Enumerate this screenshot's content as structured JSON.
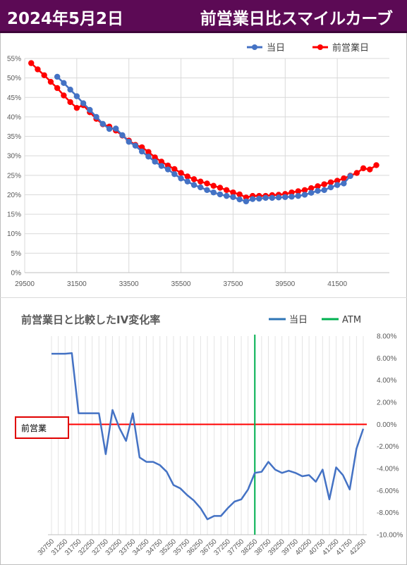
{
  "header": {
    "date": "2024年5月2日",
    "title": "前営業日比スマイルカーブ",
    "bg_color": "#5c0a55"
  },
  "chart_data": [
    {
      "type": "scatter",
      "title": "",
      "legend": {
        "placement": "top-right",
        "entries": [
          "当日",
          "前営業日"
        ]
      },
      "xlim": [
        29500,
        43500
      ],
      "ylim": [
        0,
        55
      ],
      "y_unit": "%",
      "x_ticks": [
        "29500",
        "31500",
        "33500",
        "35500",
        "37500",
        "39500",
        "41500"
      ],
      "y_ticks": [
        "0%",
        "5%",
        "10%",
        "15%",
        "20%",
        "25%",
        "30%",
        "35%",
        "40%",
        "45%",
        "50%",
        "55%"
      ],
      "grid": true,
      "series": [
        {
          "name": "当日",
          "color": "#4472c4",
          "x": [
            30750,
            31000,
            31250,
            31500,
            31750,
            32000,
            32250,
            32500,
            32750,
            33000,
            33250,
            33500,
            33750,
            34000,
            34250,
            34500,
            34750,
            35000,
            35250,
            35500,
            35750,
            36000,
            36250,
            36500,
            36750,
            37000,
            37250,
            37500,
            37750,
            38000,
            38250,
            38500,
            38750,
            39000,
            39250,
            39500,
            39750,
            40000,
            40250,
            40500,
            40750,
            41000,
            41250,
            41500,
            41750,
            42000
          ],
          "y": [
            50.3,
            48.7,
            47.0,
            45.3,
            43.5,
            41.8,
            40.0,
            38.2,
            36.9,
            37.0,
            35.3,
            33.6,
            32.6,
            31.1,
            29.8,
            28.5,
            27.4,
            26.5,
            25.3,
            24.2,
            23.4,
            22.5,
            21.9,
            21.2,
            20.6,
            20.1,
            19.7,
            19.4,
            18.8,
            18.3,
            18.9,
            19.0,
            19.2,
            19.2,
            19.3,
            19.4,
            19.5,
            19.7,
            20.0,
            20.5,
            21.0,
            21.2,
            21.9,
            22.5,
            22.9,
            24.8
          ]
        },
        {
          "name": "前営業日",
          "color": "#ff0000",
          "x": [
            29750,
            30000,
            30250,
            30500,
            30750,
            31000,
            31250,
            31500,
            31750,
            32000,
            32250,
            32500,
            32750,
            33000,
            33250,
            33500,
            33750,
            34000,
            34250,
            34500,
            34750,
            35000,
            35250,
            35500,
            35750,
            36000,
            36250,
            36500,
            36750,
            37000,
            37250,
            37500,
            37750,
            38000,
            38250,
            38500,
            38750,
            39000,
            39250,
            39500,
            39750,
            40000,
            40250,
            40500,
            40750,
            41000,
            41250,
            41500,
            41750,
            42000,
            42250,
            42500,
            42750,
            43000
          ],
          "y": [
            53.8,
            52.2,
            50.7,
            49.0,
            47.4,
            45.5,
            43.8,
            42.3,
            43.0,
            41.2,
            39.5,
            38.1,
            37.5,
            36.5,
            35.2,
            33.9,
            32.8,
            32.2,
            31.0,
            29.6,
            28.5,
            27.5,
            26.6,
            25.6,
            24.7,
            24.0,
            23.4,
            22.9,
            22.3,
            21.8,
            21.2,
            20.6,
            20.1,
            19.3,
            19.7,
            19.7,
            19.7,
            19.9,
            20.0,
            20.2,
            20.6,
            20.9,
            21.2,
            21.7,
            22.2,
            22.7,
            23.2,
            23.6,
            24.2,
            24.9,
            25.6,
            26.8,
            26.5,
            27.6
          ]
        }
      ]
    },
    {
      "type": "line",
      "title": "前営業日と比較したIV変化率",
      "legend": {
        "placement": "top-right",
        "entries": [
          "当日",
          "ATM"
        ]
      },
      "y_unit": "%",
      "ylim": [
        -10,
        8
      ],
      "y_ticks": [
        "8.00%",
        "6.00%",
        "4.00%",
        "2.00%",
        "0.00%",
        "-2.00%",
        "-4.00%",
        "-6.00%",
        "-8.00%",
        "-10.00%"
      ],
      "x_labels": [
        "30750",
        "31250",
        "31750",
        "32250",
        "32750",
        "33250",
        "33750",
        "34250",
        "34750",
        "35250",
        "35750",
        "36250",
        "36750",
        "37250",
        "37750",
        "38250",
        "38750",
        "39250",
        "39750",
        "40250",
        "40750",
        "41250",
        "41750",
        "42250"
      ],
      "atm_x": 38250,
      "atm_color": "#00b050",
      "baseline_color": "#ff0000",
      "baseline_label": "前営業",
      "series": [
        {
          "name": "当日",
          "color": "#4472c4",
          "x": [
            30750,
            31000,
            31250,
            31500,
            31750,
            32000,
            32250,
            32500,
            32750,
            33000,
            33250,
            33500,
            33750,
            34000,
            34250,
            34500,
            34750,
            35000,
            35250,
            35500,
            35750,
            36000,
            36250,
            36500,
            36750,
            37000,
            37250,
            37500,
            37750,
            38000,
            38250,
            38500,
            38750,
            39000,
            39250,
            39500,
            39750,
            40000,
            40250,
            40500,
            40750,
            41000,
            41250,
            41500,
            41750,
            42000,
            42250
          ],
          "y": [
            6.4,
            6.4,
            6.4,
            6.45,
            1.0,
            1.0,
            1.0,
            1.0,
            -2.7,
            1.3,
            -0.3,
            -1.5,
            1.0,
            -3.0,
            -3.4,
            -3.4,
            -3.7,
            -4.3,
            -5.5,
            -5.8,
            -6.4,
            -6.9,
            -7.6,
            -8.6,
            -8.3,
            -8.3,
            -7.6,
            -7.0,
            -6.8,
            -5.9,
            -4.4,
            -4.3,
            -3.4,
            -4.1,
            -4.4,
            -4.2,
            -4.4,
            -4.7,
            -4.6,
            -5.2,
            -4.1,
            -6.8,
            -3.9,
            -4.6,
            -5.9,
            -2.2,
            -0.4
          ]
        }
      ]
    }
  ]
}
